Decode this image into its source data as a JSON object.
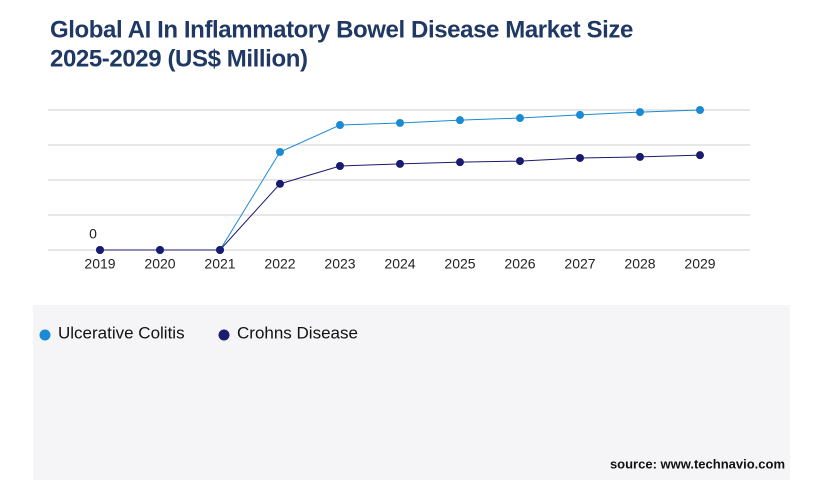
{
  "chart_data": {
    "type": "line",
    "title": [
      "Global AI In Inflammatory Bowel Disease Market Size",
      "2025-2029 (US$ Million)"
    ],
    "categories": [
      "2019",
      "2020",
      "2021",
      "2022",
      "2023",
      "2024",
      "2025",
      "2026",
      "2027",
      "2028",
      "2029"
    ],
    "series": [
      {
        "name": "Ulcerative Colitis",
        "color": "#1a8ad4",
        "values": [
          0,
          0,
          0,
          2.8,
          3.57,
          3.63,
          3.71,
          3.77,
          3.86,
          3.94,
          4.0
        ],
        "value_labels": [
          "0",
          null,
          null,
          null,
          null,
          null,
          null,
          null,
          null,
          null,
          null
        ]
      },
      {
        "name": "Crohns Disease",
        "color": "#1a1a6e",
        "values": [
          0,
          0,
          0,
          1.89,
          2.4,
          2.46,
          2.51,
          2.54,
          2.63,
          2.66,
          2.71
        ]
      }
    ],
    "ylim": [
      0,
      4
    ],
    "yticks": [
      0,
      1,
      2,
      3,
      4
    ],
    "grid": true,
    "source": "source: www.technavio.com"
  }
}
